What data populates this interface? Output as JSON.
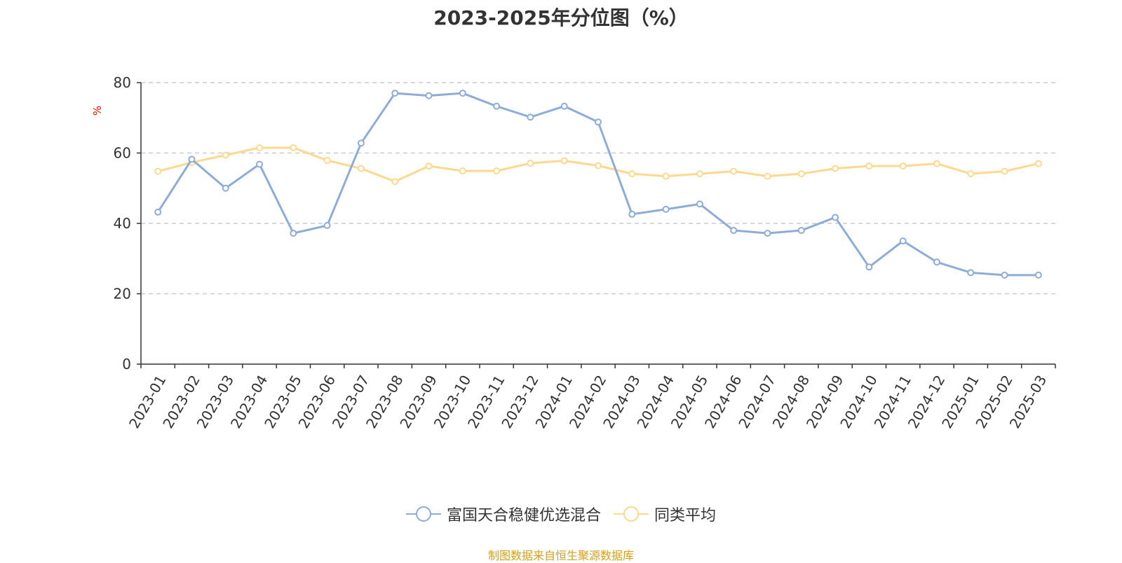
{
  "chart_data": {
    "type": "line",
    "title": "2023-2025年分位图（%）",
    "ylabel": "%",
    "ylim": [
      0,
      80
    ],
    "yticks": [
      0,
      20,
      40,
      60,
      80
    ],
    "grid": true,
    "legend_position": "bottom",
    "categories": [
      "2023-01",
      "2023-02",
      "2023-03",
      "2023-04",
      "2023-05",
      "2023-06",
      "2023-07",
      "2023-08",
      "2023-09",
      "2023-10",
      "2023-11",
      "2023-12",
      "2024-01",
      "2024-02",
      "2024-03",
      "2024-04",
      "2024-05",
      "2024-06",
      "2024-07",
      "2024-08",
      "2024-09",
      "2024-10",
      "2024-11",
      "2024-12",
      "2025-01",
      "2025-02",
      "2025-03"
    ],
    "series": [
      {
        "name": "富国天合稳健优选混合",
        "color": "#8eacd8",
        "values": [
          43.2,
          58.2,
          50.0,
          56.8,
          37.2,
          39.4,
          62.8,
          77.0,
          76.3,
          77.0,
          73.3,
          70.2,
          73.3,
          68.8,
          42.6,
          44.0,
          45.5,
          38.0,
          37.2,
          38.0,
          41.7,
          27.6,
          35.0,
          29.0,
          26.0,
          25.3,
          25.3
        ]
      },
      {
        "name": "同类平均",
        "color": "#fcd98e",
        "values": [
          54.8,
          57.3,
          59.4,
          61.5,
          61.5,
          57.9,
          55.6,
          51.9,
          56.3,
          54.9,
          54.9,
          57.1,
          57.8,
          56.4,
          54.1,
          53.4,
          54.1,
          54.8,
          53.4,
          54.1,
          55.6,
          56.3,
          56.3,
          57.0,
          54.1,
          54.8,
          57.0
        ]
      }
    ]
  },
  "source_text": "制图数据来自恒生聚源数据库"
}
